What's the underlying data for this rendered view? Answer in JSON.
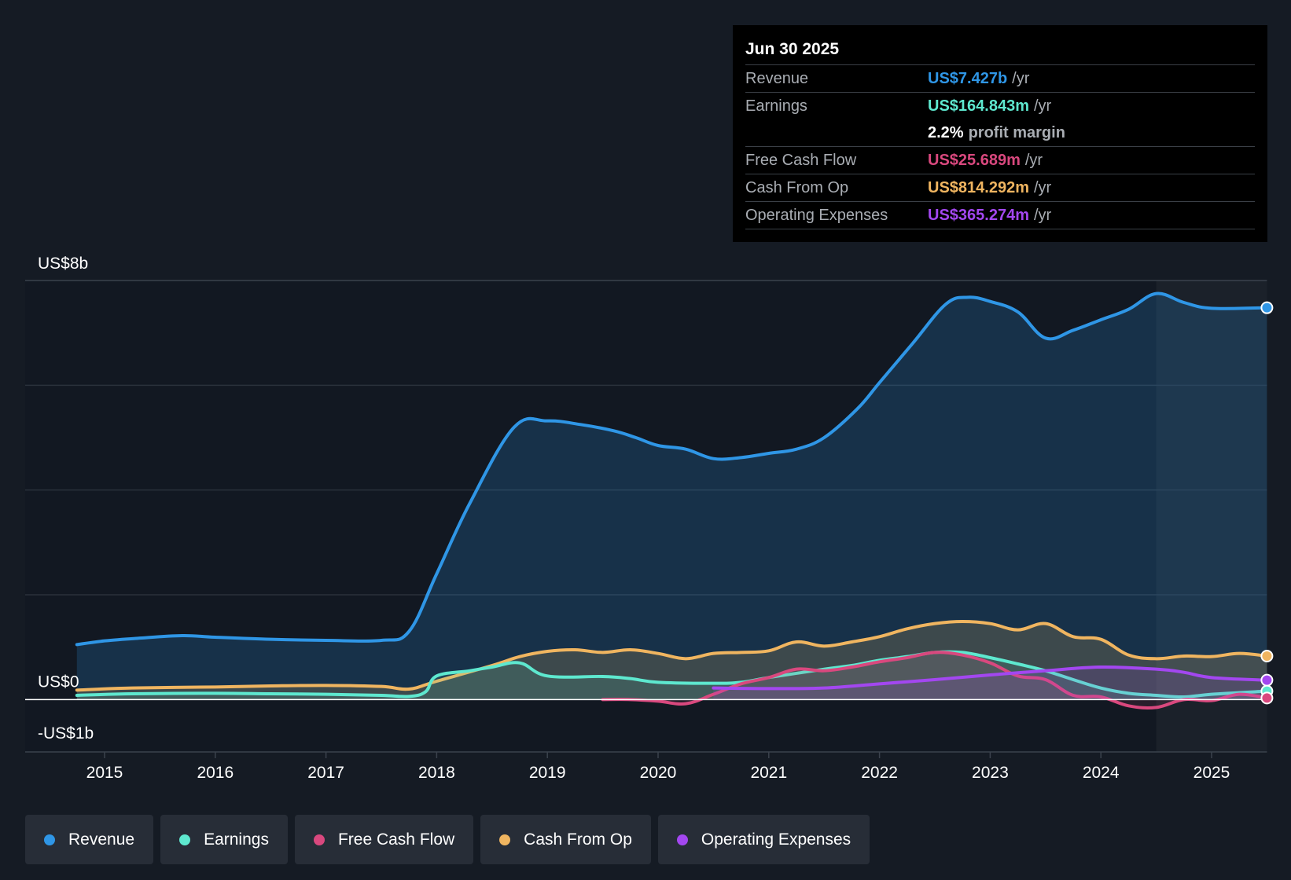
{
  "tooltip": {
    "date": "Jun 30 2025",
    "rows": [
      {
        "label": "Revenue",
        "value": "US$7.427b",
        "unit": "/yr",
        "color": "#2f96e6"
      },
      {
        "label": "Earnings",
        "value": "US$164.843m",
        "unit": "/yr",
        "color": "#5ee8cf"
      },
      {
        "label": "",
        "value": "2.2%",
        "unit": "profit margin",
        "color": "#ffffff"
      },
      {
        "label": "Free Cash Flow",
        "value": "US$25.689m",
        "unit": "/yr",
        "color": "#d9487e"
      },
      {
        "label": "Cash From Op",
        "value": "US$814.292m",
        "unit": "/yr",
        "color": "#f0b560"
      },
      {
        "label": "Operating Expenses",
        "value": "US$365.274m",
        "unit": "/yr",
        "color": "#a347f0"
      }
    ]
  },
  "legend": [
    {
      "label": "Revenue",
      "color": "#2f96e6"
    },
    {
      "label": "Earnings",
      "color": "#5ee8cf"
    },
    {
      "label": "Free Cash Flow",
      "color": "#d9487e"
    },
    {
      "label": "Cash From Op",
      "color": "#f0b560"
    },
    {
      "label": "Operating Expenses",
      "color": "#a347f0"
    }
  ],
  "chart_data": {
    "type": "area",
    "ylim": [
      -1,
      8
    ],
    "y_tick_labels": [
      {
        "value": 8,
        "label": "US$8b"
      },
      {
        "value": 0,
        "label": "US$0"
      },
      {
        "value": -1,
        "label": "-US$1b"
      }
    ],
    "xlim": [
      2014.3,
      2025.5
    ],
    "x_ticks": [
      2015,
      2016,
      2017,
      2018,
      2019,
      2020,
      2021,
      2022,
      2023,
      2024,
      2025
    ],
    "grid": true,
    "forecast_shade_start": 2024.5,
    "series": [
      {
        "name": "Revenue",
        "color": "#2f96e6",
        "width": 4,
        "fill": "rgba(47,150,230,0.20)",
        "points": [
          [
            2014.75,
            1.05
          ],
          [
            2015.0,
            1.12
          ],
          [
            2015.3,
            1.17
          ],
          [
            2015.7,
            1.22
          ],
          [
            2016.0,
            1.19
          ],
          [
            2016.5,
            1.15
          ],
          [
            2017.0,
            1.13
          ],
          [
            2017.5,
            1.13
          ],
          [
            2017.75,
            1.3
          ],
          [
            2018.0,
            2.4
          ],
          [
            2018.3,
            3.75
          ],
          [
            2018.7,
            5.2
          ],
          [
            2019.0,
            5.32
          ],
          [
            2019.3,
            5.25
          ],
          [
            2019.6,
            5.13
          ],
          [
            2019.8,
            5.0
          ],
          [
            2020.0,
            4.85
          ],
          [
            2020.25,
            4.78
          ],
          [
            2020.5,
            4.6
          ],
          [
            2020.75,
            4.62
          ],
          [
            2021.0,
            4.7
          ],
          [
            2021.25,
            4.78
          ],
          [
            2021.5,
            5.0
          ],
          [
            2021.8,
            5.55
          ],
          [
            2022.0,
            6.05
          ],
          [
            2022.3,
            6.8
          ],
          [
            2022.6,
            7.55
          ],
          [
            2022.8,
            7.68
          ],
          [
            2023.0,
            7.6
          ],
          [
            2023.25,
            7.4
          ],
          [
            2023.5,
            6.9
          ],
          [
            2023.75,
            7.05
          ],
          [
            2024.0,
            7.25
          ],
          [
            2024.25,
            7.45
          ],
          [
            2024.5,
            7.75
          ],
          [
            2024.75,
            7.58
          ],
          [
            2025.0,
            7.47
          ],
          [
            2025.5,
            7.48
          ]
        ]
      },
      {
        "name": "Cash From Op",
        "color": "#f0b560",
        "width": 4,
        "fill": "rgba(240,181,96,0.18)",
        "points": [
          [
            2014.75,
            0.18
          ],
          [
            2015.25,
            0.22
          ],
          [
            2016.0,
            0.24
          ],
          [
            2016.5,
            0.26
          ],
          [
            2017.0,
            0.27
          ],
          [
            2017.5,
            0.25
          ],
          [
            2017.75,
            0.2
          ],
          [
            2018.0,
            0.35
          ],
          [
            2018.5,
            0.65
          ],
          [
            2018.75,
            0.82
          ],
          [
            2019.0,
            0.92
          ],
          [
            2019.25,
            0.95
          ],
          [
            2019.5,
            0.9
          ],
          [
            2019.75,
            0.95
          ],
          [
            2020.0,
            0.88
          ],
          [
            2020.25,
            0.78
          ],
          [
            2020.5,
            0.88
          ],
          [
            2020.75,
            0.9
          ],
          [
            2021.0,
            0.93
          ],
          [
            2021.25,
            1.1
          ],
          [
            2021.5,
            1.02
          ],
          [
            2021.75,
            1.1
          ],
          [
            2022.0,
            1.2
          ],
          [
            2022.25,
            1.35
          ],
          [
            2022.5,
            1.45
          ],
          [
            2022.75,
            1.49
          ],
          [
            2023.0,
            1.45
          ],
          [
            2023.25,
            1.33
          ],
          [
            2023.5,
            1.45
          ],
          [
            2023.75,
            1.2
          ],
          [
            2024.0,
            1.15
          ],
          [
            2024.25,
            0.85
          ],
          [
            2024.5,
            0.78
          ],
          [
            2024.75,
            0.83
          ],
          [
            2025.0,
            0.82
          ],
          [
            2025.25,
            0.88
          ],
          [
            2025.5,
            0.83
          ]
        ]
      },
      {
        "name": "Earnings",
        "color": "#5ee8cf",
        "width": 4,
        "fill": "rgba(94,232,207,0.12)",
        "points": [
          [
            2014.75,
            0.08
          ],
          [
            2015.25,
            0.11
          ],
          [
            2016.0,
            0.12
          ],
          [
            2016.5,
            0.11
          ],
          [
            2017.0,
            0.1
          ],
          [
            2017.5,
            0.08
          ],
          [
            2017.75,
            0.06
          ],
          [
            2017.9,
            0.15
          ],
          [
            2018.0,
            0.45
          ],
          [
            2018.3,
            0.55
          ],
          [
            2018.5,
            0.62
          ],
          [
            2018.75,
            0.7
          ],
          [
            2019.0,
            0.45
          ],
          [
            2019.5,
            0.44
          ],
          [
            2019.75,
            0.4
          ],
          [
            2020.0,
            0.33
          ],
          [
            2020.5,
            0.31
          ],
          [
            2020.75,
            0.33
          ],
          [
            2021.0,
            0.42
          ],
          [
            2021.5,
            0.58
          ],
          [
            2021.75,
            0.65
          ],
          [
            2022.0,
            0.75
          ],
          [
            2022.25,
            0.82
          ],
          [
            2022.5,
            0.9
          ],
          [
            2022.75,
            0.9
          ],
          [
            2023.0,
            0.8
          ],
          [
            2023.25,
            0.68
          ],
          [
            2023.5,
            0.55
          ],
          [
            2023.75,
            0.38
          ],
          [
            2024.0,
            0.22
          ],
          [
            2024.25,
            0.12
          ],
          [
            2024.5,
            0.08
          ],
          [
            2024.75,
            0.05
          ],
          [
            2025.0,
            0.1
          ],
          [
            2025.5,
            0.16
          ]
        ]
      },
      {
        "name": "Free Cash Flow",
        "color": "#d9487e",
        "width": 4,
        "fill": "rgba(217,72,126,0.12)",
        "points": [
          [
            2019.5,
            0.0
          ],
          [
            2019.75,
            0.0
          ],
          [
            2020.0,
            -0.03
          ],
          [
            2020.25,
            -0.08
          ],
          [
            2020.5,
            0.1
          ],
          [
            2020.75,
            0.3
          ],
          [
            2021.0,
            0.42
          ],
          [
            2021.25,
            0.58
          ],
          [
            2021.5,
            0.55
          ],
          [
            2021.75,
            0.62
          ],
          [
            2022.0,
            0.72
          ],
          [
            2022.25,
            0.8
          ],
          [
            2022.5,
            0.9
          ],
          [
            2022.75,
            0.85
          ],
          [
            2023.0,
            0.7
          ],
          [
            2023.25,
            0.45
          ],
          [
            2023.5,
            0.38
          ],
          [
            2023.75,
            0.08
          ],
          [
            2024.0,
            0.05
          ],
          [
            2024.25,
            -0.12
          ],
          [
            2024.5,
            -0.15
          ],
          [
            2024.75,
            0.0
          ],
          [
            2025.0,
            -0.02
          ],
          [
            2025.25,
            0.1
          ],
          [
            2025.5,
            0.03
          ]
        ]
      },
      {
        "name": "Operating Expenses",
        "color": "#a347f0",
        "width": 4,
        "fill": "rgba(163,71,240,0.14)",
        "points": [
          [
            2020.5,
            0.22
          ],
          [
            2021.0,
            0.21
          ],
          [
            2021.5,
            0.22
          ],
          [
            2022.0,
            0.3
          ],
          [
            2022.5,
            0.38
          ],
          [
            2023.0,
            0.47
          ],
          [
            2023.5,
            0.55
          ],
          [
            2024.0,
            0.62
          ],
          [
            2024.5,
            0.58
          ],
          [
            2024.75,
            0.52
          ],
          [
            2025.0,
            0.42
          ],
          [
            2025.5,
            0.37
          ]
        ]
      }
    ]
  }
}
